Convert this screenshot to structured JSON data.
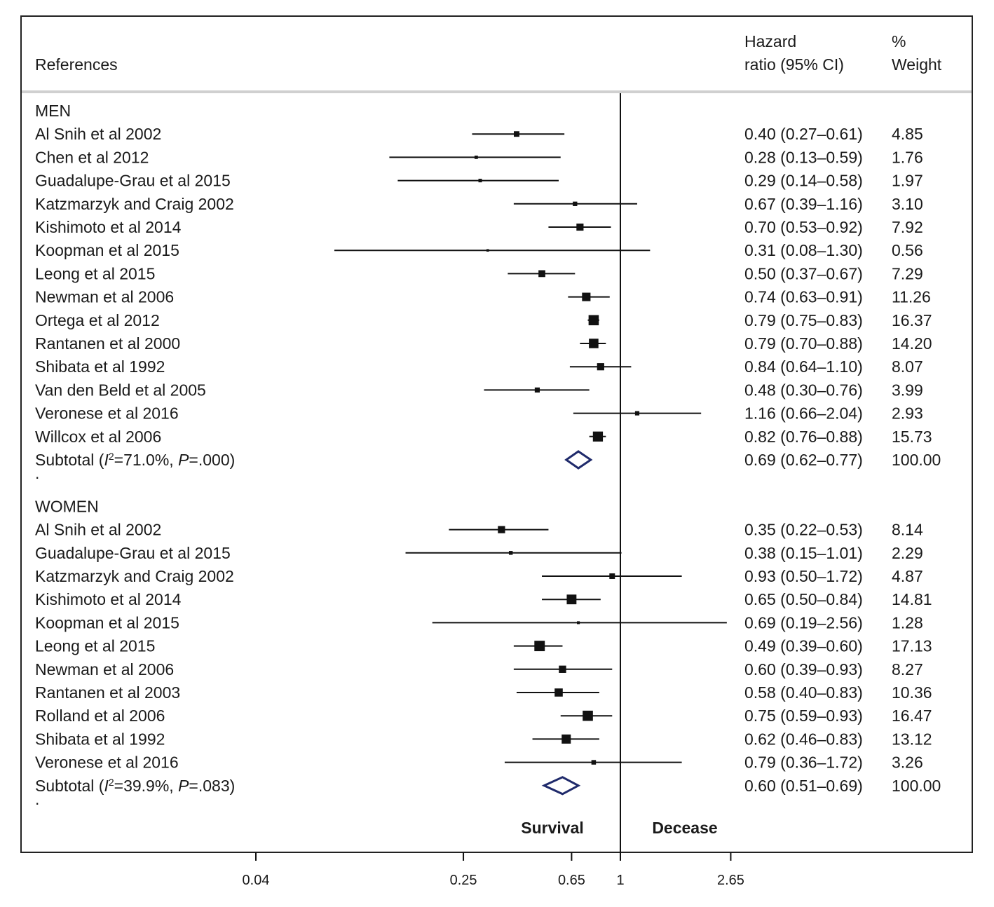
{
  "chart_data": {
    "type": "forest",
    "headers": {
      "references": "References",
      "hr_line1": "Hazard",
      "hr_line2": "ratio (95% CI)",
      "weight_line1": "%",
      "weight_line2": "Weight"
    },
    "x_scale": "log",
    "x_ticks": [
      {
        "value": 0.04,
        "label": "0.04"
      },
      {
        "value": 0.25,
        "label": "0.25"
      },
      {
        "value": 0.65,
        "label": "0.65"
      },
      {
        "value": 1,
        "label": "1"
      },
      {
        "value": 2.65,
        "label": "2.65"
      }
    ],
    "reference_line": 1,
    "direction_labels": {
      "left": "Survival",
      "right": "Decease"
    },
    "groups": [
      {
        "name": "MEN",
        "studies": [
          {
            "label": "Al Snih et al 2002",
            "hr": 0.4,
            "lo": 0.27,
            "hi": 0.61,
            "ci_text": "0.40 (0.27–0.61)",
            "weight": 4.85,
            "weight_text": "4.85"
          },
          {
            "label": "Chen et al 2012",
            "hr": 0.28,
            "lo": 0.13,
            "hi": 0.59,
            "ci_text": "0.28 (0.13–0.59)",
            "weight": 1.76,
            "weight_text": "1.76"
          },
          {
            "label": "Guadalupe-Grau et al 2015",
            "hr": 0.29,
            "lo": 0.14,
            "hi": 0.58,
            "ci_text": "0.29 (0.14–0.58)",
            "weight": 1.97,
            "weight_text": "1.97"
          },
          {
            "label": "Katzmarzyk and Craig 2002",
            "hr": 0.67,
            "lo": 0.39,
            "hi": 1.16,
            "ci_text": "0.67 (0.39–1.16)",
            "weight": 3.1,
            "weight_text": "3.10"
          },
          {
            "label": "Kishimoto et al 2014",
            "hr": 0.7,
            "lo": 0.53,
            "hi": 0.92,
            "ci_text": "0.70 (0.53–0.92)",
            "weight": 7.92,
            "weight_text": "7.92"
          },
          {
            "label": "Koopman et al 2015",
            "hr": 0.31,
            "lo": 0.08,
            "hi": 1.3,
            "ci_text": "0.31 (0.08–1.30)",
            "weight": 0.56,
            "weight_text": "0.56"
          },
          {
            "label": "Leong et al 2015",
            "hr": 0.5,
            "lo": 0.37,
            "hi": 0.67,
            "ci_text": "0.50 (0.37–0.67)",
            "weight": 7.29,
            "weight_text": "7.29"
          },
          {
            "label": "Newman et al 2006",
            "hr": 0.74,
            "lo": 0.63,
            "hi": 0.91,
            "ci_text": "0.74 (0.63–0.91)",
            "weight": 11.26,
            "weight_text": "11.26"
          },
          {
            "label": "Ortega et al 2012",
            "hr": 0.79,
            "lo": 0.75,
            "hi": 0.83,
            "ci_text": "0.79 (0.75–0.83)",
            "weight": 16.37,
            "weight_text": "16.37"
          },
          {
            "label": "Rantanen et al 2000",
            "hr": 0.79,
            "lo": 0.7,
            "hi": 0.88,
            "ci_text": "0.79 (0.70–0.88)",
            "weight": 14.2,
            "weight_text": "14.20"
          },
          {
            "label": "Shibata et al 1992",
            "hr": 0.84,
            "lo": 0.64,
            "hi": 1.1,
            "ci_text": "0.84 (0.64–1.10)",
            "weight": 8.07,
            "weight_text": "8.07"
          },
          {
            "label": "Van den Beld et al 2005",
            "hr": 0.48,
            "lo": 0.3,
            "hi": 0.76,
            "ci_text": "0.48 (0.30–0.76)",
            "weight": 3.99,
            "weight_text": "3.99"
          },
          {
            "label": "Veronese et al 2016",
            "hr": 1.16,
            "lo": 0.66,
            "hi": 2.04,
            "ci_text": "1.16 (0.66–2.04)",
            "weight": 2.93,
            "weight_text": "2.93"
          },
          {
            "label": "Willcox et al 2006",
            "hr": 0.82,
            "lo": 0.76,
            "hi": 0.88,
            "ci_text": "0.82 (0.76–0.88)",
            "weight": 15.73,
            "weight_text": "15.73"
          }
        ],
        "subtotal": {
          "label_pre": "Subtotal (",
          "label_i": "I",
          "label_sup": "2",
          "label_mid": "=71.0%, ",
          "label_p": "P",
          "label_post": "=.000)",
          "hr": 0.69,
          "lo": 0.62,
          "hi": 0.77,
          "ci_text": "0.69 (0.62–0.77)",
          "weight_text": "100.00"
        },
        "separator": "."
      },
      {
        "name": "WOMEN",
        "studies": [
          {
            "label": "Al Snih et al 2002",
            "hr": 0.35,
            "lo": 0.22,
            "hi": 0.53,
            "ci_text": "0.35 (0.22–0.53)",
            "weight": 8.14,
            "weight_text": "8.14"
          },
          {
            "label": "Guadalupe-Grau et al 2015",
            "hr": 0.38,
            "lo": 0.15,
            "hi": 1.01,
            "ci_text": "0.38 (0.15–1.01)",
            "weight": 2.29,
            "weight_text": "2.29"
          },
          {
            "label": "Katzmarzyk and Craig 2002",
            "hr": 0.93,
            "lo": 0.5,
            "hi": 1.72,
            "ci_text": "0.93 (0.50–1.72)",
            "weight": 4.87,
            "weight_text": "4.87"
          },
          {
            "label": "Kishimoto et al 2014",
            "hr": 0.65,
            "lo": 0.5,
            "hi": 0.84,
            "ci_text": "0.65 (0.50–0.84)",
            "weight": 14.81,
            "weight_text": "14.81"
          },
          {
            "label": "Koopman et al 2015",
            "hr": 0.69,
            "lo": 0.19,
            "hi": 2.56,
            "ci_text": "0.69 (0.19–2.56)",
            "weight": 1.28,
            "weight_text": "1.28"
          },
          {
            "label": "Leong et al 2015",
            "hr": 0.49,
            "lo": 0.39,
            "hi": 0.6,
            "ci_text": "0.49 (0.39–0.60)",
            "weight": 17.13,
            "weight_text": "17.13"
          },
          {
            "label": "Newman et al 2006",
            "hr": 0.6,
            "lo": 0.39,
            "hi": 0.93,
            "ci_text": "0.60 (0.39–0.93)",
            "weight": 8.27,
            "weight_text": "8.27"
          },
          {
            "label": "Rantanen et al 2003",
            "hr": 0.58,
            "lo": 0.4,
            "hi": 0.83,
            "ci_text": "0.58 (0.40–0.83)",
            "weight": 10.36,
            "weight_text": "10.36"
          },
          {
            "label": "Rolland et al 2006",
            "hr": 0.75,
            "lo": 0.59,
            "hi": 0.93,
            "ci_text": "0.75 (0.59–0.93)",
            "weight": 16.47,
            "weight_text": "16.47"
          },
          {
            "label": "Shibata et al 1992",
            "hr": 0.62,
            "lo": 0.46,
            "hi": 0.83,
            "ci_text": "0.62 (0.46–0.83)",
            "weight": 13.12,
            "weight_text": "13.12"
          },
          {
            "label": "Veronese et al 2016",
            "hr": 0.79,
            "lo": 0.36,
            "hi": 1.72,
            "ci_text": "0.79 (0.36–1.72)",
            "weight": 3.26,
            "weight_text": "3.26"
          }
        ],
        "subtotal": {
          "label_pre": "Subtotal (",
          "label_i": "I",
          "label_sup": "2",
          "label_mid": "=39.9%, ",
          "label_p": "P",
          "label_post": "=.083)",
          "hr": 0.6,
          "lo": 0.51,
          "hi": 0.69,
          "ci_text": "0.60 (0.51–0.69)",
          "weight_text": "100.00"
        },
        "separator": "."
      }
    ],
    "colors": {
      "marker": "#111111",
      "diamond": "#1f2a6b",
      "line": "#111111",
      "header_rule": "#cccccc"
    }
  }
}
